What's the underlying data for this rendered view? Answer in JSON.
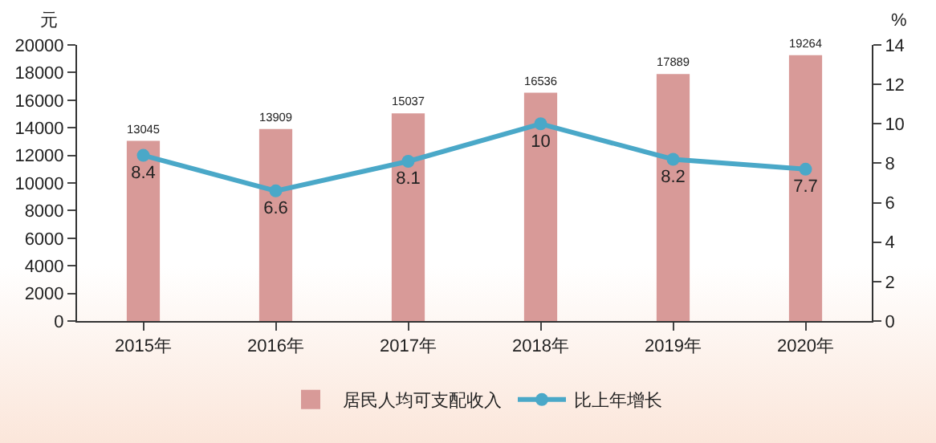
{
  "chart_data": {
    "type": "bar",
    "categories": [
      "2015年",
      "2016年",
      "2017年",
      "2018年",
      "2019年",
      "2020年"
    ],
    "ylabel": "元",
    "y2label": "%",
    "series": [
      {
        "name": "居民人均可支配收入",
        "color": "#d89a98",
        "values": [
          13045,
          13909,
          15037,
          16536,
          17889,
          19264
        ]
      },
      {
        "name": "比上年增长",
        "type": "line",
        "axis": "y2",
        "color": "#4aa8c8",
        "values": [
          8.4,
          6.6,
          8.1,
          10,
          8.2,
          7.7
        ]
      }
    ],
    "ylim": [
      0,
      20000
    ],
    "yticks": [
      0,
      2000,
      4000,
      6000,
      8000,
      10000,
      12000,
      14000,
      16000,
      18000,
      20000
    ],
    "y2lim": [
      0,
      14
    ],
    "y2ticks": [
      0,
      2,
      4,
      6,
      8,
      10,
      12,
      14
    ],
    "data_labels": true,
    "marker": "circle",
    "grid": false,
    "legend": "bottom"
  }
}
